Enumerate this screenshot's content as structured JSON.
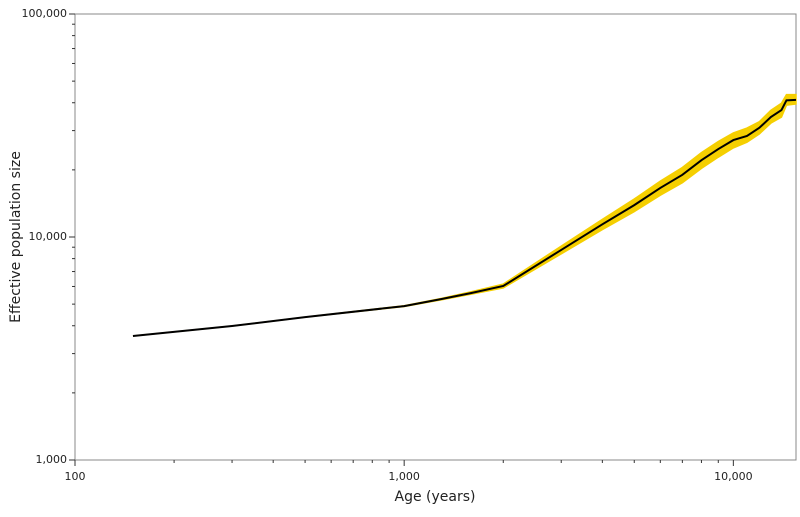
{
  "chart_data": {
    "type": "line",
    "xlabel": "Age (years)",
    "ylabel": "Effective population size",
    "xscale": "log",
    "yscale": "log",
    "xlim": [
      100,
      15500
    ],
    "ylim": [
      1000,
      100000
    ],
    "xticks": [
      100,
      {
        "value": 1000,
        "label": "1,000"
      },
      {
        "value": 10000,
        "label": "10,000"
      }
    ],
    "yticks": [
      {
        "value": 1000,
        "label": "1,000"
      },
      {
        "value": 10000,
        "label": "10,000"
      },
      {
        "value": 100000,
        "label": "100,000"
      }
    ],
    "xminorticks": [
      200,
      300,
      400,
      500,
      600,
      700,
      800,
      900,
      2000,
      3000,
      4000,
      5000,
      6000,
      7000,
      8000,
      9000
    ],
    "yminorticks": [
      2000,
      3000,
      4000,
      5000,
      6000,
      7000,
      8000,
      9000,
      20000,
      30000,
      40000,
      50000,
      60000,
      70000,
      80000,
      90000
    ],
    "x": [
      150,
      300,
      500,
      1000,
      1300,
      1600,
      2000,
      3000,
      4000,
      5000,
      6000,
      7000,
      8000,
      9000,
      10000,
      11000,
      12000,
      13000,
      14000,
      14500,
      15500
    ],
    "series": [
      {
        "color": "#000000",
        "values": [
          3600,
          3990,
          4370,
          4900,
          5270,
          5610,
          6030,
          8750,
          11400,
          13900,
          16600,
          19000,
          22100,
          24800,
          27200,
          28400,
          30900,
          34500,
          37100,
          41000,
          41200
        ]
      }
    ],
    "band": {
      "color": "#f5cf00",
      "lower": [
        3600,
        3990,
        4370,
        4880,
        5230,
        5540,
        5910,
        8400,
        10800,
        13000,
        15400,
        17500,
        20300,
        22800,
        25100,
        26600,
        29000,
        32400,
        34500,
        39000,
        39500
      ],
      "upper": [
        3600,
        3990,
        4370,
        4920,
        5310,
        5680,
        6150,
        9100,
        12000,
        14800,
        17800,
        20500,
        23900,
        26800,
        29300,
        30800,
        32900,
        37000,
        39800,
        43500,
        43500
      ]
    }
  }
}
